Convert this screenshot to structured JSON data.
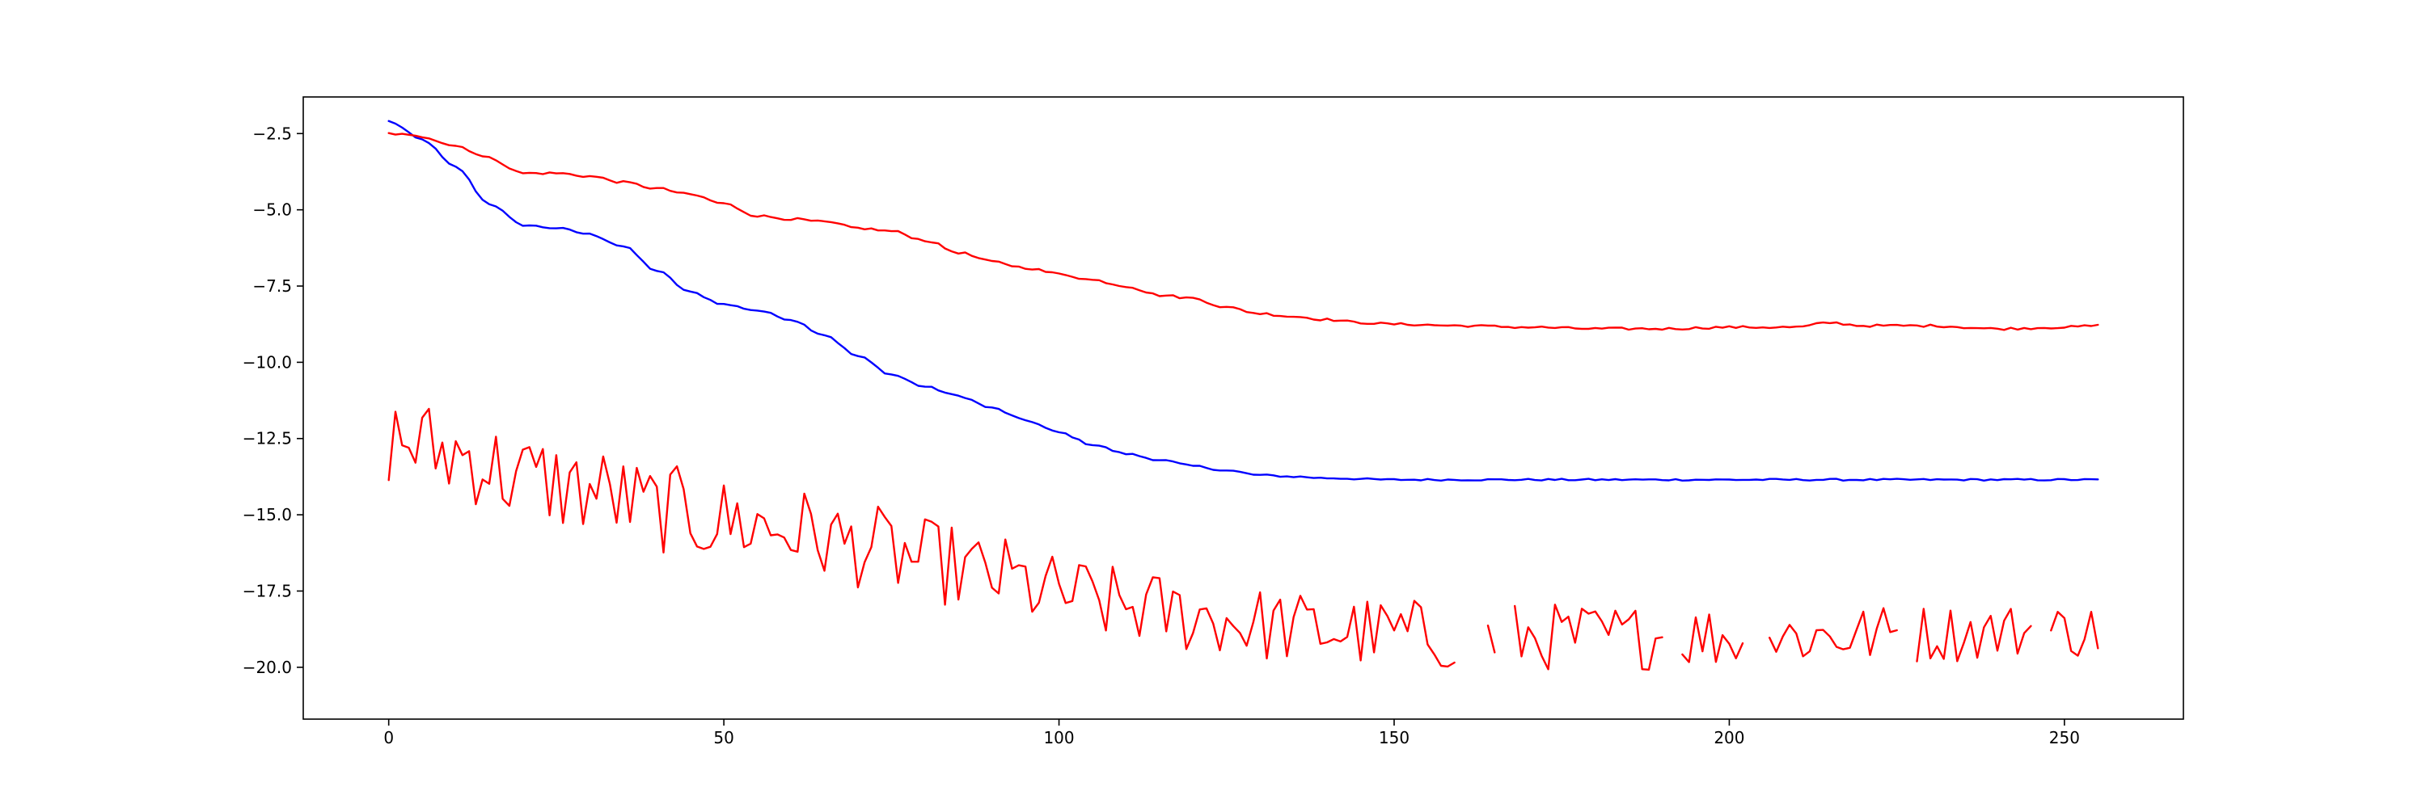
{
  "chart_data": {
    "type": "line",
    "title": "",
    "xlabel": "",
    "ylabel": "",
    "xlim": [
      -12.75,
      267.75
    ],
    "ylim": [
      -21.7,
      -1.3
    ],
    "x_ticks": [
      0,
      50,
      100,
      150,
      200,
      250
    ],
    "y_ticks": [
      -2.5,
      -5.0,
      -7.5,
      -10.0,
      -12.5,
      -15.0,
      -17.5,
      -20.0
    ],
    "x_tick_labels": [
      "0",
      "50",
      "100",
      "150",
      "200",
      "250"
    ],
    "y_tick_labels": [
      "−2.5",
      "−5.0",
      "−7.5",
      "−10.0",
      "−12.5",
      "−15.0",
      "−17.5",
      "−20.0"
    ],
    "grid": false,
    "legend": "none",
    "series": [
      {
        "color": "#0000ff",
        "kind": "smooth",
        "anchors": [
          [
            0,
            -2.1
          ],
          [
            5,
            -2.7
          ],
          [
            10,
            -3.6
          ],
          [
            15,
            -4.8
          ],
          [
            20,
            -5.5
          ],
          [
            25,
            -5.6
          ],
          [
            30,
            -5.8
          ],
          [
            35,
            -6.2
          ],
          [
            40,
            -7.0
          ],
          [
            45,
            -7.7
          ],
          [
            50,
            -8.1
          ],
          [
            55,
            -8.3
          ],
          [
            60,
            -8.6
          ],
          [
            65,
            -9.1
          ],
          [
            70,
            -9.8
          ],
          [
            75,
            -10.4
          ],
          [
            80,
            -10.8
          ],
          [
            85,
            -11.1
          ],
          [
            90,
            -11.5
          ],
          [
            95,
            -11.9
          ],
          [
            100,
            -12.3
          ],
          [
            105,
            -12.7
          ],
          [
            110,
            -13.0
          ],
          [
            115,
            -13.2
          ],
          [
            120,
            -13.4
          ],
          [
            125,
            -13.55
          ],
          [
            130,
            -13.7
          ],
          [
            135,
            -13.75
          ],
          [
            140,
            -13.8
          ],
          [
            150,
            -13.85
          ],
          [
            160,
            -13.85
          ],
          [
            200,
            -13.85
          ],
          [
            255,
            -13.85
          ]
        ],
        "wobble": 0.03
      },
      {
        "color": "#ff0000",
        "kind": "smooth",
        "anchors": [
          [
            0,
            -2.5
          ],
          [
            5,
            -2.6
          ],
          [
            10,
            -2.9
          ],
          [
            15,
            -3.3
          ],
          [
            20,
            -3.8
          ],
          [
            25,
            -3.8
          ],
          [
            30,
            -3.9
          ],
          [
            35,
            -4.1
          ],
          [
            40,
            -4.3
          ],
          [
            45,
            -4.5
          ],
          [
            50,
            -4.8
          ],
          [
            55,
            -5.2
          ],
          [
            60,
            -5.3
          ],
          [
            65,
            -5.4
          ],
          [
            70,
            -5.6
          ],
          [
            75,
            -5.7
          ],
          [
            80,
            -6.0
          ],
          [
            85,
            -6.4
          ],
          [
            90,
            -6.7
          ],
          [
            95,
            -6.9
          ],
          [
            100,
            -7.1
          ],
          [
            105,
            -7.3
          ],
          [
            110,
            -7.5
          ],
          [
            115,
            -7.8
          ],
          [
            120,
            -7.9
          ],
          [
            125,
            -8.2
          ],
          [
            130,
            -8.4
          ],
          [
            135,
            -8.5
          ],
          [
            140,
            -8.6
          ],
          [
            145,
            -8.7
          ],
          [
            150,
            -8.75
          ],
          [
            160,
            -8.8
          ],
          [
            170,
            -8.85
          ],
          [
            180,
            -8.9
          ],
          [
            190,
            -8.9
          ],
          [
            200,
            -8.85
          ],
          [
            210,
            -8.85
          ],
          [
            215,
            -8.7
          ],
          [
            220,
            -8.8
          ],
          [
            230,
            -8.8
          ],
          [
            240,
            -8.9
          ],
          [
            250,
            -8.85
          ],
          [
            255,
            -8.8
          ]
        ],
        "wobble": 0.04
      },
      {
        "color": "#ff0000",
        "kind": "noisy",
        "anchors": [
          [
            0,
            -12.5
          ],
          [
            10,
            -13.0
          ],
          [
            20,
            -13.8
          ],
          [
            30,
            -14.2
          ],
          [
            40,
            -14.8
          ],
          [
            50,
            -15.2
          ],
          [
            60,
            -15.5
          ],
          [
            70,
            -16.0
          ],
          [
            80,
            -16.5
          ],
          [
            90,
            -17.0
          ],
          [
            100,
            -17.6
          ],
          [
            110,
            -18.0
          ],
          [
            120,
            -18.3
          ],
          [
            130,
            -18.6
          ],
          [
            140,
            -18.8
          ],
          [
            150,
            -18.9
          ],
          [
            160,
            -19.0
          ],
          [
            200,
            -19.0
          ],
          [
            255,
            -18.8
          ]
        ],
        "noise_start": 1.6,
        "noise_end": 0.9,
        "gaps": [
          [
            160,
            163
          ],
          [
            166,
            167
          ],
          [
            191,
            192
          ],
          [
            203,
            205
          ],
          [
            226,
            227
          ],
          [
            246,
            247
          ]
        ]
      }
    ]
  }
}
